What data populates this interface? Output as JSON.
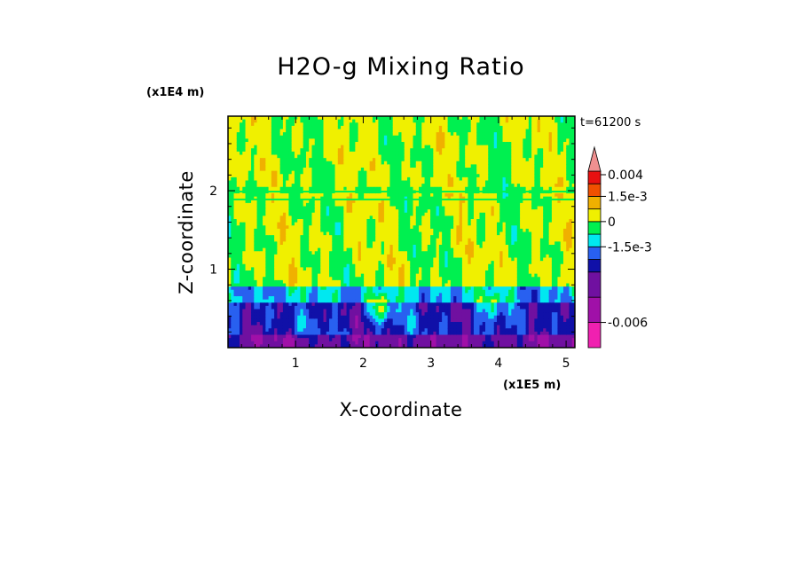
{
  "chart_data": {
    "type": "heatmap",
    "title": "H2O-g Mixing Ratio",
    "xlabel": "X-coordinate",
    "ylabel": "Z-coordinate",
    "x_unit": "(x1E5 m)",
    "y_unit": "(x1E4 m)",
    "time_label": "t=61200 s",
    "xlim": [
      0,
      5.13
    ],
    "ylim": [
      0,
      2.95
    ],
    "x_ticks": [
      1,
      2,
      3,
      4,
      5
    ],
    "y_ticks": [
      1,
      2
    ],
    "x_tick_labels": [
      "1",
      "2",
      "3",
      "4",
      "5"
    ],
    "y_tick_labels": [
      "1",
      "2"
    ],
    "colorbar": {
      "levels": [
        {
          "color": "#f020b0"
        },
        {
          "color": "#a010a8"
        },
        {
          "color": "#7010a0"
        },
        {
          "color": "#1010a8"
        },
        {
          "color": "#2860f0"
        },
        {
          "color": "#00e8f0"
        },
        {
          "color": "#00f050"
        },
        {
          "color": "#f0f000"
        },
        {
          "color": "#f0b000"
        },
        {
          "color": "#f05000"
        },
        {
          "color": "#e81010"
        },
        {
          "color": "#f09090"
        }
      ],
      "labels": [
        {
          "text": "0.004",
          "level_index": 11
        },
        {
          "text": "1.5e-3",
          "level_index": 9
        },
        {
          "text": "0",
          "level_index": 7
        },
        {
          "text": "-1.5e-3",
          "level_index": 5
        },
        {
          "text": "-0.006",
          "level_index": 1
        }
      ]
    },
    "field_description_bands": [
      {
        "z_from": 0.0,
        "z_to": 0.15,
        "dominant": "#7010a0"
      },
      {
        "z_from": 0.1,
        "z_to": 0.55,
        "dominant": "#1010a8"
      },
      {
        "z_from": 0.5,
        "z_to": 0.8,
        "dominant": "#00e8f0"
      },
      {
        "z_from": 0.8,
        "z_to": 2.95,
        "dominant": "#f0f000"
      }
    ]
  }
}
